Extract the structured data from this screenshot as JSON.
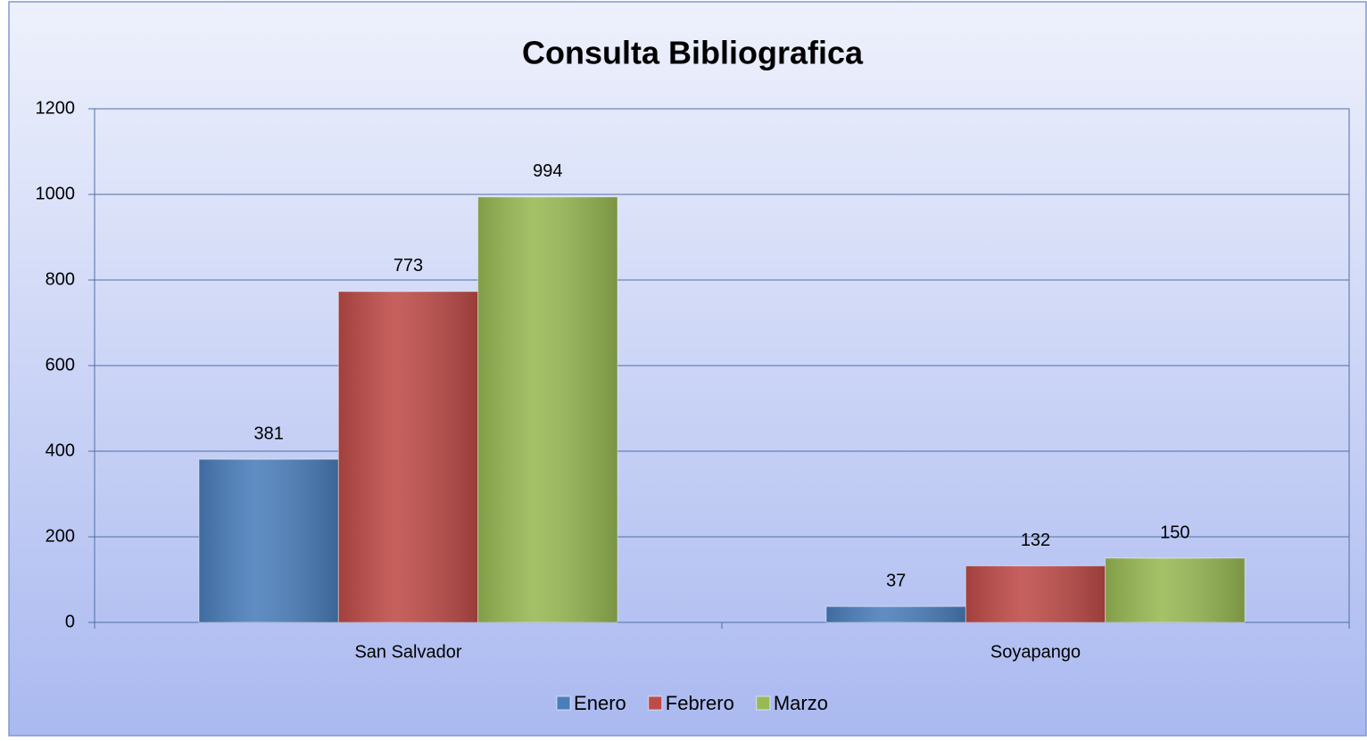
{
  "chart_data": {
    "type": "bar",
    "title": "Consulta Bibliografica",
    "categories": [
      "San Salvador",
      "Soyapango"
    ],
    "series": [
      {
        "name": "Enero",
        "color": "#4a7ebb",
        "values": [
          381,
          37
        ]
      },
      {
        "name": "Febrero",
        "color": "#be4b48",
        "values": [
          773,
          132
        ]
      },
      {
        "name": "Marzo",
        "color": "#98b954",
        "values": [
          994,
          150
        ]
      }
    ],
    "ylim": [
      0,
      1200
    ],
    "yticks": [
      0,
      200,
      400,
      600,
      800,
      1000,
      1200
    ],
    "grid": true,
    "legend": "bottom"
  }
}
